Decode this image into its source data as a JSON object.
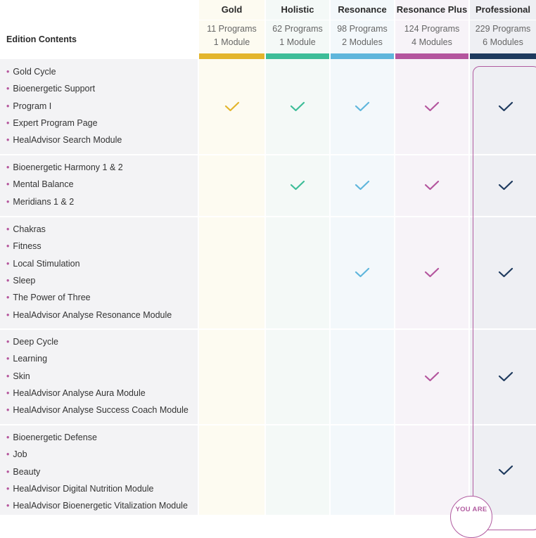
{
  "table": {
    "edition_contents_label": "Edition Contents",
    "you_are_label": "YOU ARE",
    "editions": [
      {
        "name": "Gold",
        "programs": "11 Programs",
        "modules": "1 Module",
        "color": "#e3b52c"
      },
      {
        "name": "Holistic",
        "programs": "62 Programs",
        "modules": "1 Module",
        "color": "#3dbd98"
      },
      {
        "name": "Resonance",
        "programs": "98 Programs",
        "modules": "2 Modules",
        "color": "#5fb6dc"
      },
      {
        "name": "Resonance Plus",
        "programs": "124 Programs",
        "modules": "4 Modules",
        "color": "#b4559e"
      },
      {
        "name": "Professional",
        "programs": "229 Programs",
        "modules": "6 Modules",
        "color": "#1e3a5e"
      }
    ],
    "groups": [
      {
        "items": [
          "Gold Cycle",
          "Bioenergetic Support",
          "Program I",
          "Expert Program Page",
          "HealAdvisor Search Module"
        ],
        "included": [
          true,
          true,
          true,
          true,
          true
        ]
      },
      {
        "items": [
          "Bioenergetic Harmony 1 & 2",
          "Mental Balance",
          "Meridians 1 & 2"
        ],
        "included": [
          false,
          true,
          true,
          true,
          true
        ]
      },
      {
        "items": [
          "Chakras",
          "Fitness",
          "Local Stimulation",
          "Sleep",
          "The Power of Three",
          "HealAdvisor Analyse Resonance Module"
        ],
        "included": [
          false,
          false,
          true,
          true,
          true
        ]
      },
      {
        "items": [
          "Deep Cycle",
          "Learning",
          "Skin",
          "HealAdvisor Analyse Aura Module",
          "HealAdvisor Analyse Success Coach Module"
        ],
        "included": [
          false,
          false,
          false,
          true,
          true
        ]
      },
      {
        "items": [
          "Bioenergetic Defense",
          "Job",
          "Beauty",
          "HealAdvisor Digital Nutrition Module",
          "HealAdvisor Bioenergetic Vitalization Module"
        ],
        "included": [
          false,
          false,
          false,
          false,
          true
        ]
      }
    ],
    "colors": {
      "accent_frame": "#b15ca0",
      "bullet": "#b5559c"
    }
  }
}
